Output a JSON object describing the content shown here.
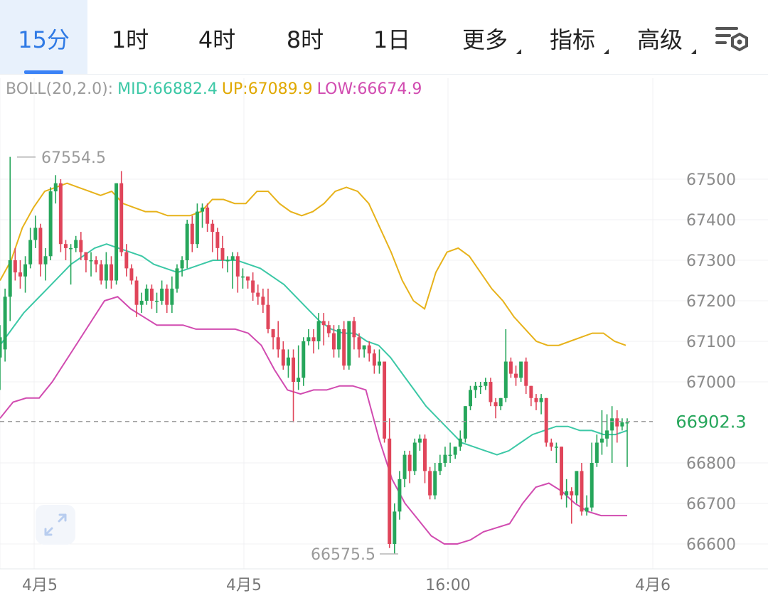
{
  "tabs": [
    {
      "label": "15分",
      "active": true,
      "dropdown": false
    },
    {
      "label": "1时",
      "active": false,
      "dropdown": false
    },
    {
      "label": "4时",
      "active": false,
      "dropdown": false
    },
    {
      "label": "8时",
      "active": false,
      "dropdown": false
    },
    {
      "label": "1日",
      "active": false,
      "dropdown": false
    },
    {
      "label": "更多",
      "active": false,
      "dropdown": true
    },
    {
      "label": "指标",
      "active": false,
      "dropdown": true
    },
    {
      "label": "高级",
      "active": false,
      "dropdown": true
    }
  ],
  "settings_icon": "chart-settings-icon",
  "indicator": {
    "name": "BOLL(20,2.0):",
    "mid": "MID:66882.4",
    "up": "UP:67089.9",
    "low": "LOW:66674.9"
  },
  "colors": {
    "up": "#26a65b",
    "down": "#e0455a",
    "mid": "#3cc8a6",
    "upper": "#e7b21a",
    "lower": "#d14bb0",
    "price_line": "#9e9e9e",
    "price_label": "#26a65b",
    "accent": "#2f7ae5"
  },
  "chart_data": {
    "type": "candlestick",
    "y_ticks": [
      "67500",
      "67400",
      "67300",
      "67200",
      "67100",
      "67000",
      "66800",
      "66700",
      "66600"
    ],
    "x_labels": [
      "4月5",
      "4月5",
      "16:00",
      "4月6"
    ],
    "ylim": [
      66560,
      67570
    ],
    "current_price": "66902.3",
    "high_label": "67554.5",
    "low_label": "66575.5",
    "candles": [
      [
        67060,
        67110,
        66980,
        67140
      ],
      [
        67080,
        67210,
        67050,
        67230
      ],
      [
        67210,
        67300,
        67150,
        67555
      ],
      [
        67300,
        67270,
        67250,
        67330
      ],
      [
        67270,
        67260,
        67230,
        67300
      ],
      [
        67260,
        67290,
        67220,
        67310
      ],
      [
        67290,
        67350,
        67280,
        67380
      ],
      [
        67350,
        67380,
        67330,
        67410
      ],
      [
        67380,
        67290,
        67260,
        67390
      ],
      [
        67290,
        67310,
        67250,
        67330
      ],
      [
        67310,
        67470,
        67300,
        67480
      ],
      [
        67470,
        67490,
        67440,
        67510
      ],
      [
        67490,
        67340,
        67320,
        67500
      ],
      [
        67340,
        67330,
        67300,
        67350
      ],
      [
        67330,
        67330,
        67240,
        67340
      ],
      [
        67330,
        67350,
        67320,
        67360
      ],
      [
        67350,
        67320,
        67300,
        67370
      ],
      [
        67320,
        67300,
        67270,
        67310
      ],
      [
        67300,
        67300,
        67260,
        67320
      ],
      [
        67300,
        67290,
        67270,
        67310
      ],
      [
        67290,
        67250,
        67240,
        67300
      ],
      [
        67250,
        67290,
        67230,
        67320
      ],
      [
        67290,
        67250,
        67230,
        67310
      ],
      [
        67250,
        67490,
        67240,
        67490
      ],
      [
        67490,
        67320,
        67310,
        67520
      ],
      [
        67320,
        67280,
        67260,
        67340
      ],
      [
        67280,
        67250,
        67240,
        67290
      ],
      [
        67250,
        67190,
        67160,
        67260
      ],
      [
        67190,
        67200,
        67170,
        67220
      ],
      [
        67200,
        67230,
        67190,
        67240
      ],
      [
        67230,
        67200,
        67180,
        67240
      ],
      [
        67200,
        67200,
        67170,
        67220
      ],
      [
        67200,
        67230,
        67190,
        67250
      ],
      [
        67230,
        67190,
        67170,
        67240
      ],
      [
        67190,
        67230,
        67170,
        67260
      ],
      [
        67230,
        67280,
        67220,
        67290
      ],
      [
        67280,
        67300,
        67260,
        67310
      ],
      [
        67300,
        67390,
        67280,
        67400
      ],
      [
        67390,
        67340,
        67320,
        67410
      ],
      [
        67340,
        67420,
        67330,
        67440
      ],
      [
        67420,
        67430,
        67380,
        67440
      ],
      [
        67430,
        67390,
        67370,
        67440
      ],
      [
        67390,
        67370,
        67320,
        67400
      ],
      [
        67370,
        67330,
        67300,
        67380
      ],
      [
        67330,
        67300,
        67280,
        67360
      ],
      [
        67300,
        67300,
        67270,
        67310
      ],
      [
        67300,
        67310,
        67230,
        67320
      ],
      [
        67310,
        67260,
        67220,
        67320
      ],
      [
        67260,
        67260,
        67230,
        67280
      ],
      [
        67260,
        67250,
        67230,
        67260
      ],
      [
        67250,
        67220,
        67200,
        67270
      ],
      [
        67220,
        67210,
        67190,
        67240
      ],
      [
        67210,
        67190,
        67170,
        67230
      ],
      [
        67190,
        67130,
        67120,
        67230
      ],
      [
        67130,
        67110,
        67080,
        67130
      ],
      [
        67110,
        67080,
        67060,
        67150
      ],
      [
        67080,
        67040,
        67030,
        67100
      ],
      [
        67040,
        67060,
        67010,
        67080
      ],
      [
        67060,
        67000,
        66900,
        67080
      ],
      [
        67000,
        67010,
        66980,
        67090
      ],
      [
        67010,
        67100,
        66990,
        67110
      ],
      [
        67100,
        67110,
        67090,
        67130
      ],
      [
        67110,
        67100,
        67070,
        67130
      ],
      [
        67100,
        67150,
        67080,
        67170
      ],
      [
        67150,
        67140,
        67090,
        67170
      ],
      [
        67140,
        67120,
        67110,
        67150
      ],
      [
        67120,
        67080,
        67060,
        67140
      ],
      [
        67080,
        67130,
        67060,
        67140
      ],
      [
        67130,
        67040,
        67030,
        67150
      ],
      [
        67040,
        67150,
        67030,
        67150
      ],
      [
        67150,
        67110,
        67080,
        67160
      ],
      [
        67110,
        67080,
        67060,
        67120
      ],
      [
        67080,
        67090,
        67060,
        67090
      ],
      [
        67090,
        67070,
        67050,
        67100
      ],
      [
        67070,
        67040,
        67020,
        67080
      ],
      [
        67040,
        67050,
        67020,
        67080
      ],
      [
        67050,
        66860,
        66850,
        67050
      ],
      [
        66860,
        66600,
        66590,
        66910
      ],
      [
        66600,
        66680,
        66575,
        66700
      ],
      [
        66680,
        66760,
        66660,
        66780
      ],
      [
        66760,
        66820,
        66740,
        66830
      ],
      [
        66820,
        66780,
        66750,
        66830
      ],
      [
        66780,
        66850,
        66770,
        66860
      ],
      [
        66850,
        66860,
        66830,
        66870
      ],
      [
        66860,
        66780,
        66750,
        66870
      ],
      [
        66780,
        66720,
        66710,
        66790
      ],
      [
        66720,
        66780,
        66710,
        66800
      ],
      [
        66780,
        66800,
        66770,
        66820
      ],
      [
        66800,
        66820,
        66790,
        66840
      ],
      [
        66820,
        66820,
        66800,
        66850
      ],
      [
        66820,
        66840,
        66810,
        66840
      ],
      [
        66840,
        66860,
        66830,
        66880
      ],
      [
        66860,
        66940,
        66850,
        66940
      ],
      [
        66940,
        66980,
        66930,
        66990
      ],
      [
        66980,
        66990,
        66960,
        67000
      ],
      [
        66990,
        66990,
        66970,
        67000
      ],
      [
        66990,
        67000,
        66980,
        67010
      ],
      [
        67000,
        66950,
        66940,
        67010
      ],
      [
        66950,
        66940,
        66910,
        66960
      ],
      [
        66940,
        66960,
        66930,
        66960
      ],
      [
        66960,
        67050,
        66950,
        67130
      ],
      [
        67050,
        67020,
        67010,
        67060
      ],
      [
        67020,
        67010,
        66990,
        67040
      ],
      [
        67010,
        67050,
        67000,
        67050
      ],
      [
        67050,
        66990,
        66970,
        67060
      ],
      [
        66990,
        66960,
        66940,
        66990
      ],
      [
        66960,
        66950,
        66930,
        66970
      ],
      [
        66950,
        66960,
        66920,
        66970
      ],
      [
        66960,
        66850,
        66840,
        66960
      ],
      [
        66850,
        66840,
        66830,
        66860
      ],
      [
        66840,
        66840,
        66800,
        66850
      ],
      [
        66840,
        66720,
        66710,
        66840
      ],
      [
        66720,
        66730,
        66690,
        66760
      ],
      [
        66730,
        66720,
        66650,
        66740
      ],
      [
        66720,
        66780,
        66700,
        66780
      ],
      [
        66780,
        66680,
        66670,
        66800
      ],
      [
        66680,
        66690,
        66670,
        66720
      ],
      [
        66690,
        66800,
        66680,
        66850
      ],
      [
        66800,
        66850,
        66790,
        66870
      ],
      [
        66850,
        66860,
        66820,
        66930
      ],
      [
        66860,
        66880,
        66840,
        66920
      ],
      [
        66880,
        66910,
        66800,
        66940
      ],
      [
        66910,
        66890,
        66850,
        66930
      ],
      [
        66890,
        66900,
        66880,
        66910
      ],
      [
        66900,
        66900,
        66790,
        66910
      ]
    ],
    "boll_upper": [
      67250,
      67300,
      67380,
      67430,
      67470,
      67480,
      67490,
      67480,
      67470,
      67460,
      67470,
      67440,
      67430,
      67420,
      67420,
      67410,
      67410,
      67410,
      67420,
      67450,
      67450,
      67440,
      67440,
      67470,
      67470,
      67440,
      67420,
      67410,
      67420,
      67440,
      67470,
      67480,
      67470,
      67440,
      67380,
      67320,
      67250,
      67200,
      67180,
      67270,
      67320,
      67330,
      67310,
      67270,
      67230,
      67200,
      67160,
      67130,
      67100,
      67090,
      67090,
      67100,
      67110,
      67120,
      67120,
      67100,
      67090
    ],
    "boll_mid": [
      67090,
      67130,
      67170,
      67200,
      67230,
      67260,
      67290,
      67310,
      67330,
      67340,
      67330,
      67320,
      67310,
      67290,
      67280,
      67270,
      67280,
      67290,
      67300,
      67300,
      67300,
      67290,
      67280,
      67260,
      67240,
      67210,
      67180,
      67150,
      67130,
      67120,
      67120,
      67100,
      67090,
      67060,
      67020,
      66980,
      66940,
      66910,
      66880,
      66850,
      66840,
      66830,
      66820,
      66830,
      66850,
      66870,
      66880,
      66890,
      66890,
      66880,
      66880,
      66870,
      66870,
      66880
    ],
    "boll_lower": [
      66910,
      66950,
      66960,
      66960,
      67000,
      67050,
      67100,
      67150,
      67200,
      67210,
      67180,
      67160,
      67140,
      67140,
      67140,
      67130,
      67130,
      67130,
      67130,
      67120,
      67090,
      67030,
      66980,
      66970,
      66980,
      66980,
      66990,
      66990,
      66980,
      66860,
      66760,
      66700,
      66660,
      66620,
      66600,
      66600,
      66610,
      66630,
      66640,
      66650,
      66700,
      66740,
      66750,
      66730,
      66700,
      66680,
      66670,
      66670,
      66670
    ]
  }
}
